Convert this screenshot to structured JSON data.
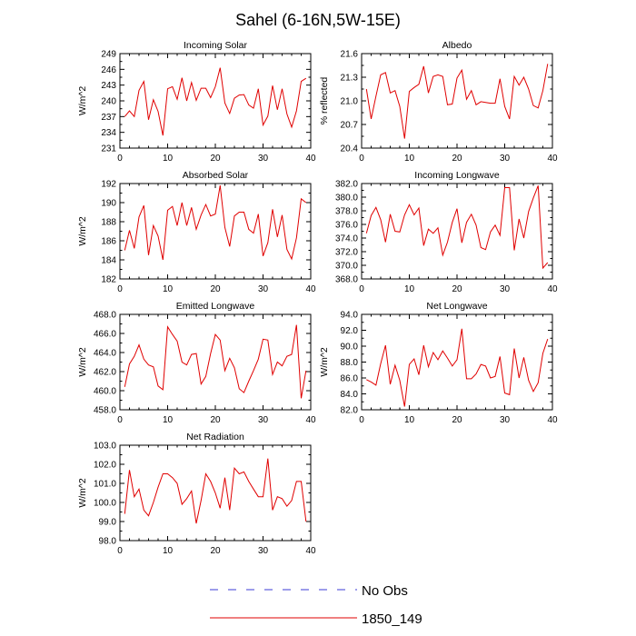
{
  "title": "Sahel (6-16N,5W-15E)",
  "legend": [
    {
      "label": "No Obs",
      "color": "#3b3bd6",
      "style": "dashed"
    },
    {
      "label": "1850_149",
      "color": "#e00000",
      "style": "solid"
    }
  ],
  "chart_data": [
    {
      "type": "line",
      "title": "Incoming Solar",
      "ylabel": "W/m^2",
      "xlim": [
        0,
        40
      ],
      "ylim": [
        231,
        249
      ],
      "xticks": [
        0,
        10,
        20,
        30,
        40
      ],
      "xtick_labels": [
        "0",
        "10",
        "20",
        "30",
        "40"
      ],
      "yticks": [
        231,
        234,
        237,
        240,
        243,
        246,
        249
      ],
      "ytick_labels": [
        "231",
        "234",
        "237",
        "240",
        "243",
        "246",
        "249"
      ],
      "series": [
        {
          "name": "1850_149",
          "color": "#e00000",
          "x": [
            1,
            2,
            3,
            4,
            5,
            6,
            7,
            8,
            9,
            10,
            11,
            12,
            13,
            14,
            15,
            16,
            17,
            18,
            19,
            20,
            21,
            22,
            23,
            24,
            25,
            26,
            27,
            28,
            29,
            30,
            31,
            32,
            33,
            34,
            35,
            36,
            37,
            38,
            39
          ],
          "y": [
            237.0,
            238.1,
            237.0,
            242.0,
            243.7,
            236.4,
            240.2,
            238.0,
            233.4,
            242.3,
            242.7,
            240.3,
            244.4,
            240.0,
            243.5,
            240.1,
            242.4,
            242.4,
            240.6,
            242.7,
            246.3,
            239.6,
            237.6,
            240.5,
            241.1,
            241.2,
            239.2,
            238.6,
            242.3,
            235.4,
            237.1,
            242.9,
            238.3,
            242.3,
            237.5,
            235.0,
            238.1,
            243.7,
            244.3
          ]
        }
      ]
    },
    {
      "type": "line",
      "title": "Albedo",
      "ylabel": "% reflected",
      "xlim": [
        0,
        40
      ],
      "ylim": [
        20.4,
        21.6
      ],
      "xticks": [
        0,
        10,
        20,
        30,
        40
      ],
      "xtick_labels": [
        "0",
        "10",
        "20",
        "30",
        "40"
      ],
      "yticks": [
        20.4,
        20.7,
        21.0,
        21.3,
        21.6
      ],
      "ytick_labels": [
        "20.4",
        "20.7",
        "21.0",
        "21.3",
        "21.6"
      ],
      "series": [
        {
          "name": "1850_149",
          "color": "#e00000",
          "x": [
            1,
            2,
            3,
            4,
            5,
            6,
            7,
            8,
            9,
            10,
            11,
            12,
            13,
            14,
            15,
            16,
            17,
            18,
            19,
            20,
            21,
            22,
            23,
            24,
            25,
            26,
            27,
            28,
            29,
            30,
            31,
            32,
            33,
            34,
            35,
            36,
            37,
            38,
            39
          ],
          "y": [
            21.15,
            20.77,
            21.06,
            21.33,
            21.36,
            21.1,
            21.13,
            20.93,
            20.52,
            21.12,
            21.17,
            21.21,
            21.44,
            21.1,
            21.31,
            21.33,
            21.31,
            20.95,
            20.96,
            21.29,
            21.39,
            21.02,
            21.13,
            20.95,
            20.99,
            20.98,
            20.97,
            20.97,
            21.28,
            20.93,
            20.77,
            21.31,
            21.2,
            21.3,
            21.15,
            20.94,
            20.91,
            21.13,
            21.47
          ]
        }
      ]
    },
    {
      "type": "line",
      "title": "Absorbed Solar",
      "ylabel": "W/m^2",
      "xlim": [
        0,
        40
      ],
      "ylim": [
        182,
        192
      ],
      "xticks": [
        0,
        10,
        20,
        30,
        40
      ],
      "xtick_labels": [
        "0",
        "10",
        "20",
        "30",
        "40"
      ],
      "yticks": [
        182,
        184,
        186,
        188,
        190,
        192
      ],
      "ytick_labels": [
        "182",
        "184",
        "186",
        "188",
        "190",
        "192"
      ],
      "series": [
        {
          "name": "1850_149",
          "color": "#e00000",
          "x": [
            1,
            2,
            3,
            4,
            5,
            6,
            7,
            8,
            9,
            10,
            11,
            12,
            13,
            14,
            15,
            16,
            17,
            18,
            19,
            20,
            21,
            22,
            23,
            24,
            25,
            26,
            27,
            28,
            29,
            30,
            31,
            32,
            33,
            34,
            35,
            36,
            37,
            38,
            39
          ],
          "y": [
            185.0,
            187.1,
            185.2,
            188.5,
            189.7,
            184.5,
            187.6,
            186.5,
            184.0,
            189.2,
            189.6,
            187.6,
            190.0,
            187.6,
            189.5,
            187.2,
            188.7,
            189.8,
            188.6,
            188.8,
            191.8,
            187.4,
            185.4,
            188.6,
            189.0,
            189.0,
            187.2,
            186.8,
            188.8,
            184.4,
            185.8,
            189.3,
            186.4,
            188.7,
            185.1,
            184.1,
            186.3,
            190.4,
            190.0
          ]
        }
      ]
    },
    {
      "type": "line",
      "title": "Incoming Longwave",
      "ylabel": "",
      "xlim": [
        0,
        40
      ],
      "ylim": [
        368,
        382
      ],
      "xticks": [
        0,
        10,
        20,
        30,
        40
      ],
      "xtick_labels": [
        "0",
        "10",
        "20",
        "30",
        "40"
      ],
      "yticks": [
        368,
        370,
        372,
        374,
        376,
        378,
        380,
        382
      ],
      "ytick_labels": [
        "368.0",
        "370.0",
        "372.0",
        "374.0",
        "376.0",
        "378.0",
        "380.0",
        "382.0"
      ],
      "series": [
        {
          "name": "1850_149",
          "color": "#e00000",
          "x": [
            1,
            2,
            3,
            4,
            5,
            6,
            7,
            8,
            9,
            10,
            11,
            12,
            13,
            14,
            15,
            16,
            17,
            18,
            19,
            20,
            21,
            22,
            23,
            24,
            25,
            26,
            27,
            28,
            29,
            30,
            31,
            32,
            33,
            34,
            35,
            36,
            37,
            38,
            39
          ],
          "y": [
            374.7,
            377.3,
            378.5,
            376.7,
            373.4,
            377.5,
            375.0,
            374.9,
            377.4,
            378.9,
            377.4,
            378.4,
            372.9,
            375.3,
            374.7,
            375.5,
            371.5,
            373.4,
            376.3,
            378.3,
            373.3,
            376.3,
            377.5,
            375.9,
            372.6,
            372.3,
            374.9,
            375.9,
            374.4,
            381.4,
            381.4,
            372.2,
            376.8,
            374.0,
            377.9,
            379.9,
            381.7,
            369.6,
            370.4
          ]
        }
      ]
    },
    {
      "type": "line",
      "title": "Emitted Longwave",
      "ylabel": "W/m^2",
      "xlim": [
        0,
        40
      ],
      "ylim": [
        458,
        468
      ],
      "xticks": [
        0,
        10,
        20,
        30,
        40
      ],
      "xtick_labels": [
        "0",
        "10",
        "20",
        "30",
        "40"
      ],
      "yticks": [
        458,
        460,
        462,
        464,
        466,
        468
      ],
      "ytick_labels": [
        "458.0",
        "460.0",
        "462.0",
        "464.0",
        "466.0",
        "468.0"
      ],
      "series": [
        {
          "name": "1850_149",
          "color": "#e00000",
          "x": [
            1,
            2,
            3,
            4,
            5,
            6,
            7,
            8,
            9,
            10,
            11,
            12,
            13,
            14,
            15,
            16,
            17,
            18,
            19,
            20,
            21,
            22,
            23,
            24,
            25,
            26,
            27,
            28,
            29,
            30,
            31,
            32,
            33,
            34,
            35,
            36,
            37,
            38,
            39
          ],
          "y": [
            460.4,
            462.8,
            463.6,
            464.8,
            463.3,
            462.7,
            462.5,
            460.5,
            460.1,
            466.7,
            465.9,
            465.2,
            463.0,
            462.7,
            463.8,
            463.9,
            460.7,
            461.5,
            463.9,
            465.9,
            465.3,
            462.1,
            463.4,
            462.4,
            460.2,
            459.8,
            461.0,
            462.1,
            463.3,
            465.4,
            465.3,
            461.7,
            463.0,
            462.6,
            463.6,
            463.8,
            466.9,
            459.2,
            462.1
          ]
        }
      ]
    },
    {
      "type": "line",
      "title": "Net Longwave",
      "ylabel": "W/m^2",
      "xlim": [
        0,
        40
      ],
      "ylim": [
        82,
        94
      ],
      "xticks": [
        0,
        10,
        20,
        30,
        40
      ],
      "xtick_labels": [
        "0",
        "10",
        "20",
        "30",
        "40"
      ],
      "yticks": [
        82,
        84,
        86,
        88,
        90,
        92,
        94
      ],
      "ytick_labels": [
        "82.0",
        "84.0",
        "86.0",
        "88.0",
        "90.0",
        "92.0",
        "94.0"
      ],
      "series": [
        {
          "name": "1850_149",
          "color": "#e00000",
          "x": [
            1,
            2,
            3,
            4,
            5,
            6,
            7,
            8,
            9,
            10,
            11,
            12,
            13,
            14,
            15,
            16,
            17,
            18,
            19,
            20,
            21,
            22,
            23,
            24,
            25,
            26,
            27,
            28,
            29,
            30,
            31,
            32,
            33,
            34,
            35,
            36,
            37,
            38,
            39
          ],
          "y": [
            85.8,
            85.5,
            85.1,
            87.8,
            90.1,
            85.2,
            87.6,
            85.7,
            82.4,
            87.7,
            88.4,
            86.4,
            90.1,
            87.4,
            89.2,
            88.3,
            89.4,
            88.5,
            87.5,
            88.3,
            92.2,
            85.9,
            85.9,
            86.5,
            87.7,
            87.5,
            86.0,
            86.2,
            88.7,
            84.1,
            83.9,
            89.7,
            86.0,
            88.6,
            85.7,
            84.3,
            85.4,
            89.1,
            90.9
          ]
        }
      ]
    },
    {
      "type": "line",
      "title": "Net Radiation",
      "ylabel": "W/m^2",
      "xlim": [
        0,
        40
      ],
      "ylim": [
        98,
        103
      ],
      "xticks": [
        0,
        10,
        20,
        30,
        40
      ],
      "xtick_labels": [
        "0",
        "10",
        "20",
        "30",
        "40"
      ],
      "yticks": [
        98,
        99,
        100,
        101,
        102,
        103
      ],
      "ytick_labels": [
        "98.0",
        "99.0",
        "100.0",
        "101.0",
        "102.0",
        "103.0"
      ],
      "series": [
        {
          "name": "1850_149",
          "color": "#e00000",
          "x": [
            1,
            2,
            3,
            4,
            5,
            6,
            7,
            8,
            9,
            10,
            11,
            12,
            13,
            14,
            15,
            16,
            17,
            18,
            19,
            20,
            21,
            22,
            23,
            24,
            25,
            26,
            27,
            28,
            29,
            30,
            31,
            32,
            33,
            34,
            35,
            36,
            37,
            38,
            39
          ],
          "y": [
            99.4,
            101.7,
            100.3,
            100.7,
            99.6,
            99.3,
            100.0,
            100.8,
            101.5,
            101.5,
            101.3,
            101.0,
            99.9,
            100.2,
            100.6,
            98.9,
            100.1,
            101.5,
            101.1,
            100.5,
            99.7,
            101.3,
            99.6,
            101.8,
            101.5,
            101.6,
            101.1,
            100.7,
            100.3,
            100.3,
            102.3,
            99.6,
            100.3,
            100.2,
            99.8,
            100.1,
            101.1,
            101.1,
            99.0
          ]
        }
      ]
    }
  ]
}
